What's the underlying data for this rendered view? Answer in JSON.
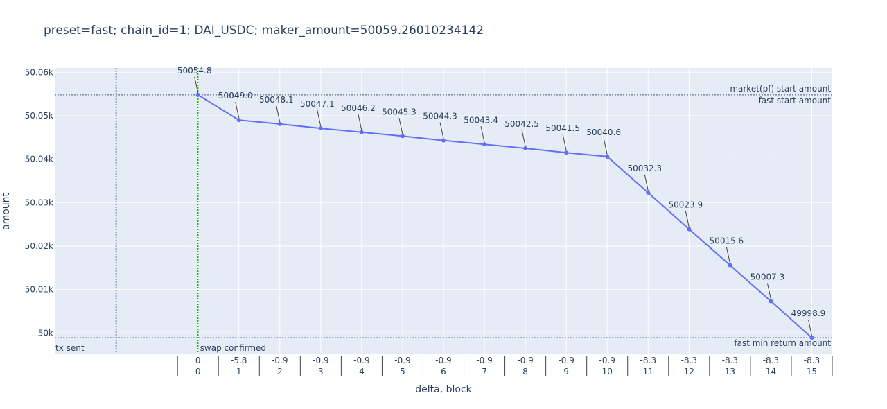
{
  "chart_data": {
    "type": "line",
    "title": "preset=fast; chain_id=1; DAI_USDC; maker_amount=50059.26010234142",
    "xlabel": "delta, block",
    "ylabel": "amount",
    "x_range": [
      -3.5,
      15.5
    ],
    "ylim": [
      49995.1,
      50061
    ],
    "y_ticks": [
      {
        "value": 50000,
        "label": "50k"
      },
      {
        "value": 50010,
        "label": "50.01k"
      },
      {
        "value": 50020,
        "label": "50.02k"
      },
      {
        "value": 50030,
        "label": "50.03k"
      },
      {
        "value": 50040,
        "label": "50.04k"
      },
      {
        "value": 50050,
        "label": "50.05k"
      },
      {
        "value": 50060,
        "label": "50.06k"
      }
    ],
    "x_ticks": [
      {
        "block": "0",
        "delta": "0"
      },
      {
        "block": "1",
        "delta": "-5.8"
      },
      {
        "block": "2",
        "delta": "-0.9"
      },
      {
        "block": "3",
        "delta": "-0.9"
      },
      {
        "block": "4",
        "delta": "-0.9"
      },
      {
        "block": "5",
        "delta": "-0.9"
      },
      {
        "block": "6",
        "delta": "-0.9"
      },
      {
        "block": "7",
        "delta": "-0.9"
      },
      {
        "block": "8",
        "delta": "-0.9"
      },
      {
        "block": "9",
        "delta": "-0.9"
      },
      {
        "block": "10",
        "delta": "-0.9"
      },
      {
        "block": "11",
        "delta": "-8.3"
      },
      {
        "block": "12",
        "delta": "-8.3"
      },
      {
        "block": "13",
        "delta": "-8.3"
      },
      {
        "block": "14",
        "delta": "-8.3"
      },
      {
        "block": "15",
        "delta": "-8.3"
      }
    ],
    "series": [
      {
        "x": [
          0,
          1,
          2,
          3,
          4,
          5,
          6,
          7,
          8,
          9,
          10,
          11,
          12,
          13,
          14,
          15
        ],
        "values": [
          50054.8,
          50049.0,
          50048.1,
          50047.1,
          50046.2,
          50045.3,
          50044.3,
          50043.4,
          50042.5,
          50041.5,
          50040.6,
          50032.3,
          50023.9,
          50015.6,
          50007.3,
          49998.9
        ],
        "labels": [
          "50054.8",
          "50049.0",
          "50048.1",
          "50047.1",
          "50046.2",
          "50045.3",
          "50044.3",
          "50043.4",
          "50042.5",
          "50041.5",
          "50040.6",
          "50032.3",
          "50023.9",
          "50015.6",
          "50007.3",
          "49998.9"
        ],
        "color": "#636efa"
      }
    ],
    "horizontal_lines": [
      {
        "value": 50054.8,
        "labels": [
          "market(pf) start amount",
          "fast start amount"
        ],
        "color": "#5a6f9a"
      },
      {
        "value": 49998.9,
        "labels": [
          "fast min return amount"
        ],
        "color": "#5a6f9a"
      }
    ],
    "vertical_lines": [
      {
        "x": -2,
        "label": "tx sent",
        "color": "#1f1fa0"
      },
      {
        "x": 0,
        "label": "swap confirmed",
        "color": "#2ca02c"
      }
    ],
    "colors": {
      "plot_bg": "#e5ecf6",
      "grid": "#ffffff",
      "text": "#2a3f5f",
      "line": "#636efa"
    },
    "grid": true
  }
}
